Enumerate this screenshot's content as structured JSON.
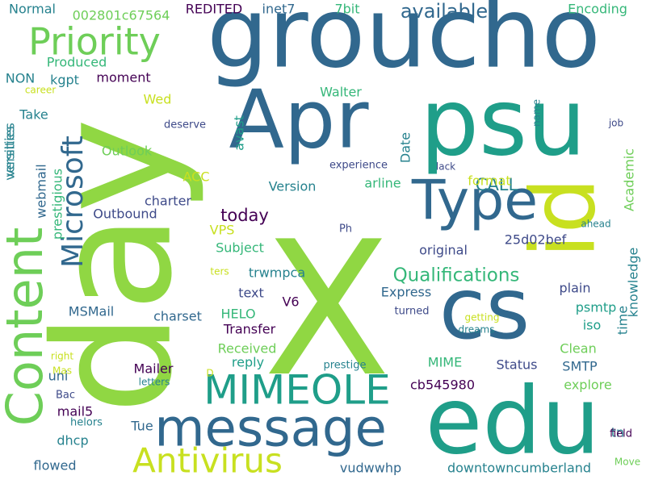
{
  "palette": {
    "dark_purple": "#440154",
    "indigo": "#3e4a89",
    "steel_blue": "#31688e",
    "teal": "#26828e",
    "green_teal": "#1f9e89",
    "sea_green": "#35b779",
    "light_green": "#6ece58",
    "lime": "#90d743",
    "yellow_green": "#c8e020",
    "pale_lime": "#addc30"
  },
  "words": [
    {
      "text": "groucho",
      "color": "#31688e"
    },
    {
      "text": "X",
      "color": "#90d743"
    },
    {
      "text": "day",
      "color": "#90d743"
    },
    {
      "text": "edu",
      "color": "#1f9e89"
    },
    {
      "text": "psu",
      "color": "#1f9e89"
    },
    {
      "text": "cs",
      "color": "#31688e"
    },
    {
      "text": "Apr",
      "color": "#31688e"
    },
    {
      "text": "id",
      "color": "#c8e020"
    },
    {
      "text": "Content",
      "color": "#6ece58"
    },
    {
      "text": "message",
      "color": "#31688e"
    },
    {
      "text": "Type",
      "color": "#31688e"
    },
    {
      "text": "Priority",
      "color": "#6ece58"
    },
    {
      "text": "MIMEOLE",
      "color": "#1f9e89"
    },
    {
      "text": "Antivirus",
      "color": "#c8e020"
    },
    {
      "text": "Microsoft",
      "color": "#31688e"
    },
    {
      "text": "Qualifications",
      "color": "#35b779"
    },
    {
      "text": "available",
      "color": "#31688e"
    },
    {
      "text": "today",
      "color": "#440154"
    },
    {
      "text": "CALL",
      "color": "#26828e"
    },
    {
      "text": "Normal",
      "color": "#26828e"
    },
    {
      "text": "002801c67564",
      "color": "#6ece58"
    },
    {
      "text": "REDITED",
      "color": "#440154"
    },
    {
      "text": "inet7",
      "color": "#31688e"
    },
    {
      "text": "7bit",
      "color": "#35b779"
    },
    {
      "text": "Encoding",
      "color": "#35b779"
    },
    {
      "text": "Produced",
      "color": "#35b779"
    },
    {
      "text": "NON",
      "color": "#26828e"
    },
    {
      "text": "kgpt",
      "color": "#26828e"
    },
    {
      "text": "moment",
      "color": "#440154"
    },
    {
      "text": "Walter",
      "color": "#35b779"
    },
    {
      "text": "career",
      "color": "#c8e020"
    },
    {
      "text": "Wed",
      "color": "#c8e020"
    },
    {
      "text": "Take",
      "color": "#26828e"
    },
    {
      "text": "name",
      "color": "#26828e"
    },
    {
      "text": "deserve",
      "color": "#3e4a89"
    },
    {
      "text": "job",
      "color": "#3e4a89"
    },
    {
      "text": "avast",
      "color": "#1f9e89"
    },
    {
      "text": "Outlook",
      "color": "#6ece58"
    },
    {
      "text": "Date",
      "color": "#26828e"
    },
    {
      "text": "experience",
      "color": "#3e4a89"
    },
    {
      "text": "lack",
      "color": "#3e4a89"
    },
    {
      "text": "Academic",
      "color": "#6ece58"
    },
    {
      "text": "versities",
      "color": "#26828e"
    },
    {
      "text": "webmail",
      "color": "#31688e"
    },
    {
      "text": "prestigious",
      "color": "#35b779"
    },
    {
      "text": "ACC",
      "color": "#c8e020"
    },
    {
      "text": "format",
      "color": "#c8e020"
    },
    {
      "text": "Version",
      "color": "#26828e"
    },
    {
      "text": "arline",
      "color": "#35b779"
    },
    {
      "text": "charter",
      "color": "#3e4a89"
    },
    {
      "text": "Outbound",
      "color": "#3e4a89"
    },
    {
      "text": "VPS",
      "color": "#c8e020"
    },
    {
      "text": "ahead",
      "color": "#26828e"
    },
    {
      "text": "Ph",
      "color": "#3e4a89"
    },
    {
      "text": "25d02bef",
      "color": "#3e4a89"
    },
    {
      "text": "knowledge",
      "color": "#26828e"
    },
    {
      "text": "Subject",
      "color": "#35b779"
    },
    {
      "text": "original",
      "color": "#3e4a89"
    },
    {
      "text": "ters",
      "color": "#c8e020"
    },
    {
      "text": "trwmpca",
      "color": "#26828e"
    },
    {
      "text": "time",
      "color": "#26828e"
    },
    {
      "text": "plain",
      "color": "#3e4a89"
    },
    {
      "text": "text",
      "color": "#3e4a89"
    },
    {
      "text": "Express",
      "color": "#31688e"
    },
    {
      "text": "V6",
      "color": "#440154"
    },
    {
      "text": "MSMail",
      "color": "#31688e"
    },
    {
      "text": "charset",
      "color": "#31688e"
    },
    {
      "text": "HELO",
      "color": "#35b779"
    },
    {
      "text": "psmtp",
      "color": "#1f9e89"
    },
    {
      "text": "Transfer",
      "color": "#440154"
    },
    {
      "text": "turned",
      "color": "#3e4a89"
    },
    {
      "text": "getting",
      "color": "#c8e020"
    },
    {
      "text": "dreams",
      "color": "#26828e"
    },
    {
      "text": "iso",
      "color": "#1f9e89"
    },
    {
      "text": "Received",
      "color": "#6ece58"
    },
    {
      "text": "Clean",
      "color": "#6ece58"
    },
    {
      "text": "versities",
      "color": "#26828e"
    },
    {
      "text": "uni",
      "color": "#31688e"
    },
    {
      "text": "reply",
      "color": "#1f9e89"
    },
    {
      "text": "MIME",
      "color": "#35b779"
    },
    {
      "text": "Status",
      "color": "#3e4a89"
    },
    {
      "text": "SMTP",
      "color": "#31688e"
    },
    {
      "text": "prestige",
      "color": "#26828e"
    },
    {
      "text": "right",
      "color": "#c8e020"
    },
    {
      "text": "Mas",
      "color": "#c8e020"
    },
    {
      "text": "Mailer",
      "color": "#440154"
    },
    {
      "text": "letters",
      "color": "#26828e"
    },
    {
      "text": "D",
      "color": "#c8e020"
    },
    {
      "text": "cb545980",
      "color": "#440154"
    },
    {
      "text": "explore",
      "color": "#6ece58"
    },
    {
      "text": "Bac",
      "color": "#3e4a89"
    },
    {
      "text": "mail5",
      "color": "#440154"
    },
    {
      "text": "helors",
      "color": "#26828e"
    },
    {
      "text": "Tue",
      "color": "#31688e"
    },
    {
      "text": "tn",
      "color": "#26828e"
    },
    {
      "text": "field",
      "color": "#440154"
    },
    {
      "text": "dhcp",
      "color": "#26828e"
    },
    {
      "text": "Move",
      "color": "#6ece58"
    },
    {
      "text": "flowed",
      "color": "#31688e"
    },
    {
      "text": "vudwwhp",
      "color": "#31688e"
    },
    {
      "text": "downtowncumberland",
      "color": "#26828e"
    }
  ]
}
